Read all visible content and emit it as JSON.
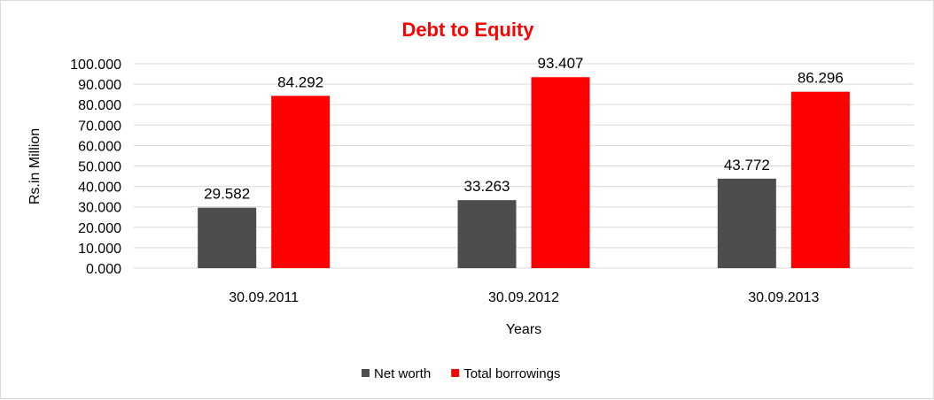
{
  "chart_data": {
    "type": "bar",
    "title": "Debt to Equity",
    "title_color": "#ff0000",
    "xlabel": "Years",
    "ylabel": "Rs.in Million",
    "categories": [
      "30.09.2011",
      "30.09.2012",
      "30.09.2013"
    ],
    "series": [
      {
        "name": "Net worth",
        "color": "#4d4d4d",
        "values": [
          29.582,
          33.263,
          43.772
        ],
        "labels": [
          "29.582",
          "33.263",
          "43.772"
        ]
      },
      {
        "name": "Total borrowings",
        "color": "#ff0000",
        "values": [
          84.292,
          93.407,
          86.296
        ],
        "labels": [
          "84.292",
          "93.407",
          "86.296"
        ]
      }
    ],
    "ylim": [
      0,
      100
    ],
    "y_ticks": [
      "0.000",
      "10.000",
      "20.000",
      "30.000",
      "40.000",
      "50.000",
      "60.000",
      "70.000",
      "80.000",
      "90.000",
      "100.000"
    ],
    "grid": true,
    "legend_position": "bottom"
  }
}
